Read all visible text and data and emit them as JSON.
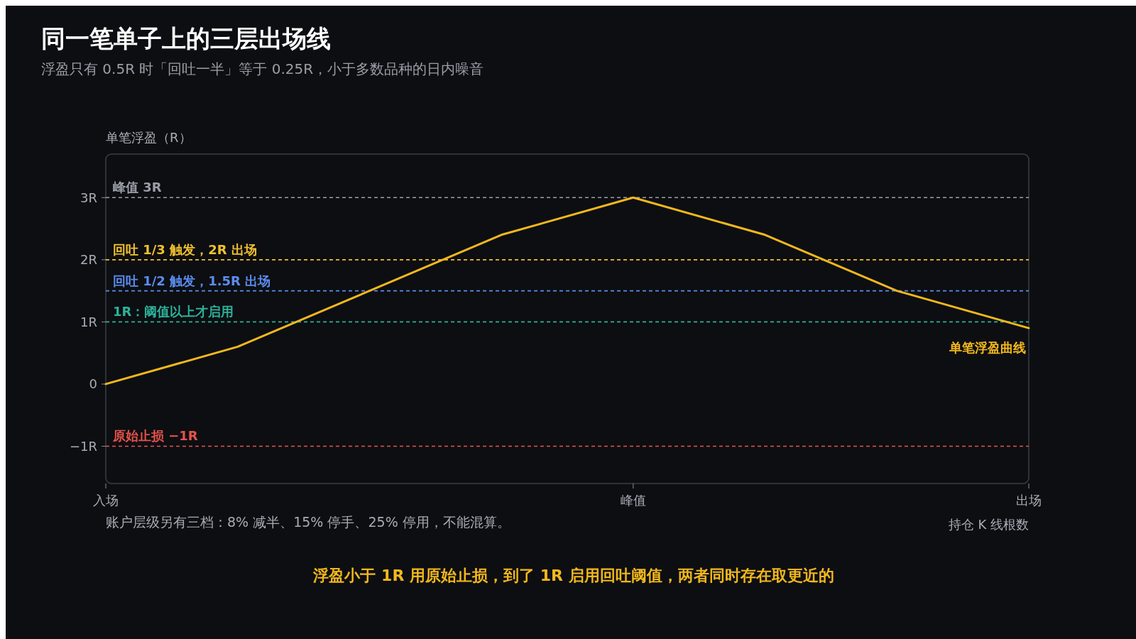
{
  "chart_data": {
    "type": "line",
    "title": "同一笔单子上的三层出场线",
    "subtitle": "浮盈只有 0.5R 时「回吐一半」等于 0.25R，小于多数品种的日内噪音",
    "xlabel": "持仓 K 线根数",
    "ylabel": "单笔浮盈（R）",
    "categories": [
      "入场",
      null,
      null,
      null,
      "峰值",
      null,
      null,
      "出场"
    ],
    "series": [
      {
        "name": "单笔浮盈曲线",
        "color": "#f2b81c",
        "values": [
          0,
          0.6,
          1.5,
          2.4,
          3,
          2.4,
          1.5,
          0.9
        ]
      }
    ],
    "ylim": [
      -1.6,
      3.7
    ],
    "yticks": [
      {
        "value": -1,
        "label": "−1R"
      },
      0,
      {
        "value": 1,
        "label": "1R"
      },
      {
        "value": 2,
        "label": "2R"
      },
      {
        "value": 3,
        "label": "3R"
      }
    ],
    "ref_lines": [
      {
        "axis": "y",
        "value": 3,
        "label": "峰值 3R",
        "color": "#9a9ea6",
        "line_style": "dashed"
      },
      {
        "axis": "y",
        "value": 2,
        "label": "回吐 1/3 触发，2R 出场",
        "color": "#f2c12e",
        "line_style": "dashed"
      },
      {
        "axis": "y",
        "value": 1.5,
        "label": "回吐 1/2 触发，1.5R 出场",
        "color": "#5b8def",
        "line_style": "dashed"
      },
      {
        "axis": "y",
        "value": 1,
        "label": "1R：阈值以上才启用",
        "color": "#2bb39a",
        "line_style": "dashed"
      },
      {
        "axis": "y",
        "value": -1,
        "label": "原始止损 −1R",
        "color": "#e5534b",
        "line_style": "dashed"
      }
    ],
    "annotations": [
      "账户层级另有三档：8% 减半、15% 停手、25% 停用，不能混算。",
      "浮盈小于 1R 用原始止损，到了 1R 启用回吐阈值，两者同时存在取更近的"
    ],
    "grid": false,
    "line_style": "solid",
    "marker": "none"
  }
}
